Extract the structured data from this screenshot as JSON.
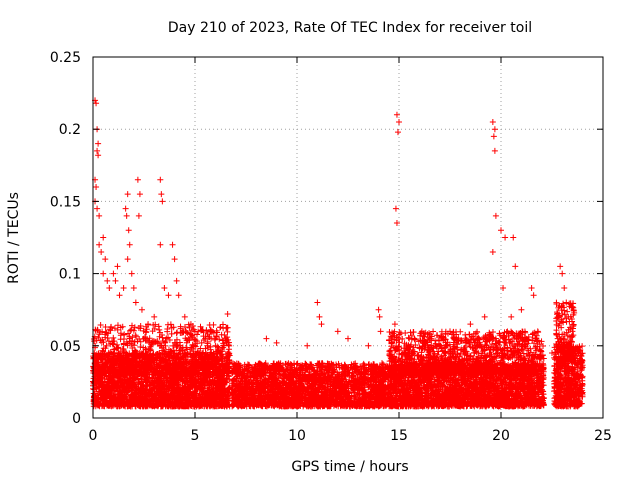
{
  "chart_data": {
    "type": "scatter",
    "title": "Day 210 of 2023, Rate Of TEC Index for receiver toil",
    "xlabel": "GPS time / hours",
    "ylabel": "ROTI / TECUs",
    "xlim": [
      0,
      25
    ],
    "ylim": [
      0,
      0.25
    ],
    "x_ticks": [
      0,
      5,
      10,
      15,
      20,
      25
    ],
    "y_ticks": [
      0,
      0.05,
      0.1,
      0.15,
      0.2,
      0.25
    ],
    "x_tick_labels": [
      "0",
      "5",
      "10",
      "15",
      "20",
      "25"
    ],
    "y_tick_labels": [
      "0",
      "0.05",
      "0.1",
      "0.15",
      "0.2",
      "0.25"
    ],
    "grid": true,
    "marker": "+",
    "color": "#ff0000",
    "series": [
      {
        "points": [
          [
            0.1,
            0.22
          ],
          [
            0.15,
            0.218
          ],
          [
            0.2,
            0.2
          ],
          [
            0.25,
            0.19
          ],
          [
            0.2,
            0.185
          ],
          [
            0.25,
            0.182
          ],
          [
            0.1,
            0.165
          ],
          [
            0.15,
            0.16
          ],
          [
            0.1,
            0.15
          ],
          [
            0.2,
            0.145
          ],
          [
            0.3,
            0.14
          ],
          [
            0.3,
            0.12
          ],
          [
            0.4,
            0.115
          ],
          [
            0.5,
            0.125
          ],
          [
            0.6,
            0.11
          ],
          [
            0.5,
            0.1
          ],
          [
            0.7,
            0.095
          ],
          [
            0.8,
            0.09
          ],
          [
            1.0,
            0.1
          ],
          [
            1.1,
            0.095
          ],
          [
            1.2,
            0.105
          ],
          [
            1.3,
            0.085
          ],
          [
            1.5,
            0.09
          ],
          [
            1.7,
            0.155
          ],
          [
            1.6,
            0.145
          ],
          [
            1.65,
            0.14
          ],
          [
            1.75,
            0.13
          ],
          [
            1.8,
            0.12
          ],
          [
            1.7,
            0.11
          ],
          [
            1.9,
            0.1
          ],
          [
            2.2,
            0.165
          ],
          [
            2.3,
            0.155
          ],
          [
            2.25,
            0.14
          ],
          [
            2.0,
            0.09
          ],
          [
            2.1,
            0.08
          ],
          [
            2.4,
            0.075
          ],
          [
            2.7,
            0.065
          ],
          [
            3.0,
            0.07
          ],
          [
            3.3,
            0.165
          ],
          [
            3.35,
            0.155
          ],
          [
            3.4,
            0.15
          ],
          [
            3.3,
            0.12
          ],
          [
            3.5,
            0.09
          ],
          [
            3.7,
            0.085
          ],
          [
            3.9,
            0.12
          ],
          [
            4.0,
            0.11
          ],
          [
            4.1,
            0.095
          ],
          [
            4.2,
            0.085
          ],
          [
            4.5,
            0.07
          ],
          [
            4.8,
            0.065
          ],
          [
            5.0,
            0.06
          ],
          [
            5.5,
            0.055
          ],
          [
            6.0,
            0.05
          ],
          [
            6.6,
            0.072
          ],
          [
            6.5,
            0.055
          ],
          [
            8.5,
            0.055
          ],
          [
            9.0,
            0.052
          ],
          [
            10.5,
            0.05
          ],
          [
            11.0,
            0.08
          ],
          [
            11.1,
            0.07
          ],
          [
            11.2,
            0.065
          ],
          [
            12.0,
            0.06
          ],
          [
            12.5,
            0.055
          ],
          [
            13.5,
            0.05
          ],
          [
            14.0,
            0.075
          ],
          [
            14.05,
            0.07
          ],
          [
            14.1,
            0.06
          ],
          [
            14.9,
            0.21
          ],
          [
            15.0,
            0.205
          ],
          [
            14.95,
            0.198
          ],
          [
            14.85,
            0.145
          ],
          [
            14.9,
            0.135
          ],
          [
            14.8,
            0.065
          ],
          [
            15.5,
            0.055
          ],
          [
            16.5,
            0.055
          ],
          [
            17.5,
            0.06
          ],
          [
            18.5,
            0.065
          ],
          [
            19.2,
            0.07
          ],
          [
            19.6,
            0.205
          ],
          [
            19.7,
            0.2
          ],
          [
            19.65,
            0.195
          ],
          [
            19.7,
            0.185
          ],
          [
            19.75,
            0.14
          ],
          [
            19.6,
            0.115
          ],
          [
            20.0,
            0.13
          ],
          [
            20.2,
            0.125
          ],
          [
            20.6,
            0.125
          ],
          [
            20.7,
            0.105
          ],
          [
            20.1,
            0.09
          ],
          [
            20.5,
            0.07
          ],
          [
            21.0,
            0.075
          ],
          [
            21.5,
            0.09
          ],
          [
            21.6,
            0.085
          ],
          [
            21.8,
            0.06
          ],
          [
            22.5,
            0.045
          ],
          [
            22.9,
            0.105
          ],
          [
            23.0,
            0.1
          ],
          [
            23.1,
            0.09
          ],
          [
            23.2,
            0.08
          ],
          [
            23.3,
            0.07
          ],
          [
            23.5,
            0.06
          ],
          [
            23.8,
            0.045
          ],
          [
            24.0,
            0.035
          ]
        ]
      }
    ],
    "density_bands": [
      {
        "x0": 0.0,
        "x1": 6.7,
        "ylo": 0.008,
        "yhi": 0.045,
        "n": 2600
      },
      {
        "x0": 0.0,
        "x1": 6.7,
        "ylo": 0.03,
        "yhi": 0.065,
        "n": 700
      },
      {
        "x0": 6.8,
        "x1": 22.1,
        "ylo": 0.008,
        "yhi": 0.038,
        "n": 5200
      },
      {
        "x0": 14.5,
        "x1": 22.1,
        "ylo": 0.03,
        "yhi": 0.06,
        "n": 1200
      },
      {
        "x0": 22.6,
        "x1": 24.0,
        "ylo": 0.008,
        "yhi": 0.05,
        "n": 600
      },
      {
        "x0": 22.7,
        "x1": 23.6,
        "ylo": 0.04,
        "yhi": 0.08,
        "n": 150
      }
    ]
  }
}
